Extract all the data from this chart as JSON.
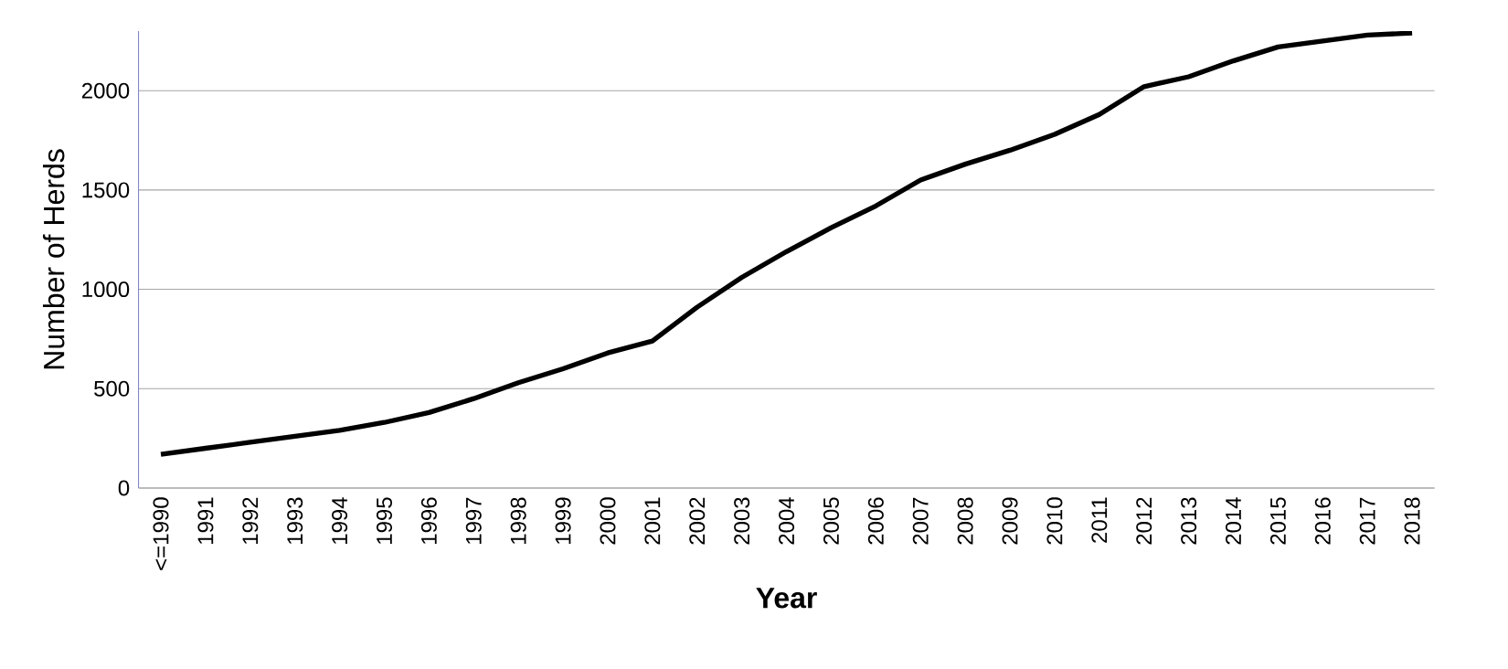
{
  "chart_data": {
    "type": "line",
    "xlabel": "Year",
    "ylabel": "Number of Herds",
    "categories": [
      "<=1990",
      "1991",
      "1992",
      "1993",
      "1994",
      "1995",
      "1996",
      "1997",
      "1998",
      "1999",
      "2000",
      "2001",
      "2002",
      "2003",
      "2004",
      "2005",
      "2006",
      "2007",
      "2008",
      "2009",
      "2010",
      "2011",
      "2012",
      "2013",
      "2014",
      "2015",
      "2016",
      "2017",
      "2018"
    ],
    "values": [
      170,
      200,
      230,
      260,
      290,
      330,
      380,
      450,
      530,
      600,
      680,
      740,
      910,
      1060,
      1190,
      1310,
      1420,
      1550,
      1630,
      1700,
      1780,
      1880,
      2020,
      2070,
      2150,
      2220,
      2250,
      2280,
      2290
    ],
    "color": "#000000",
    "ylim": [
      0,
      2300
    ],
    "yticks": [
      0,
      500,
      1000,
      1500,
      2000
    ],
    "grid": "y"
  }
}
